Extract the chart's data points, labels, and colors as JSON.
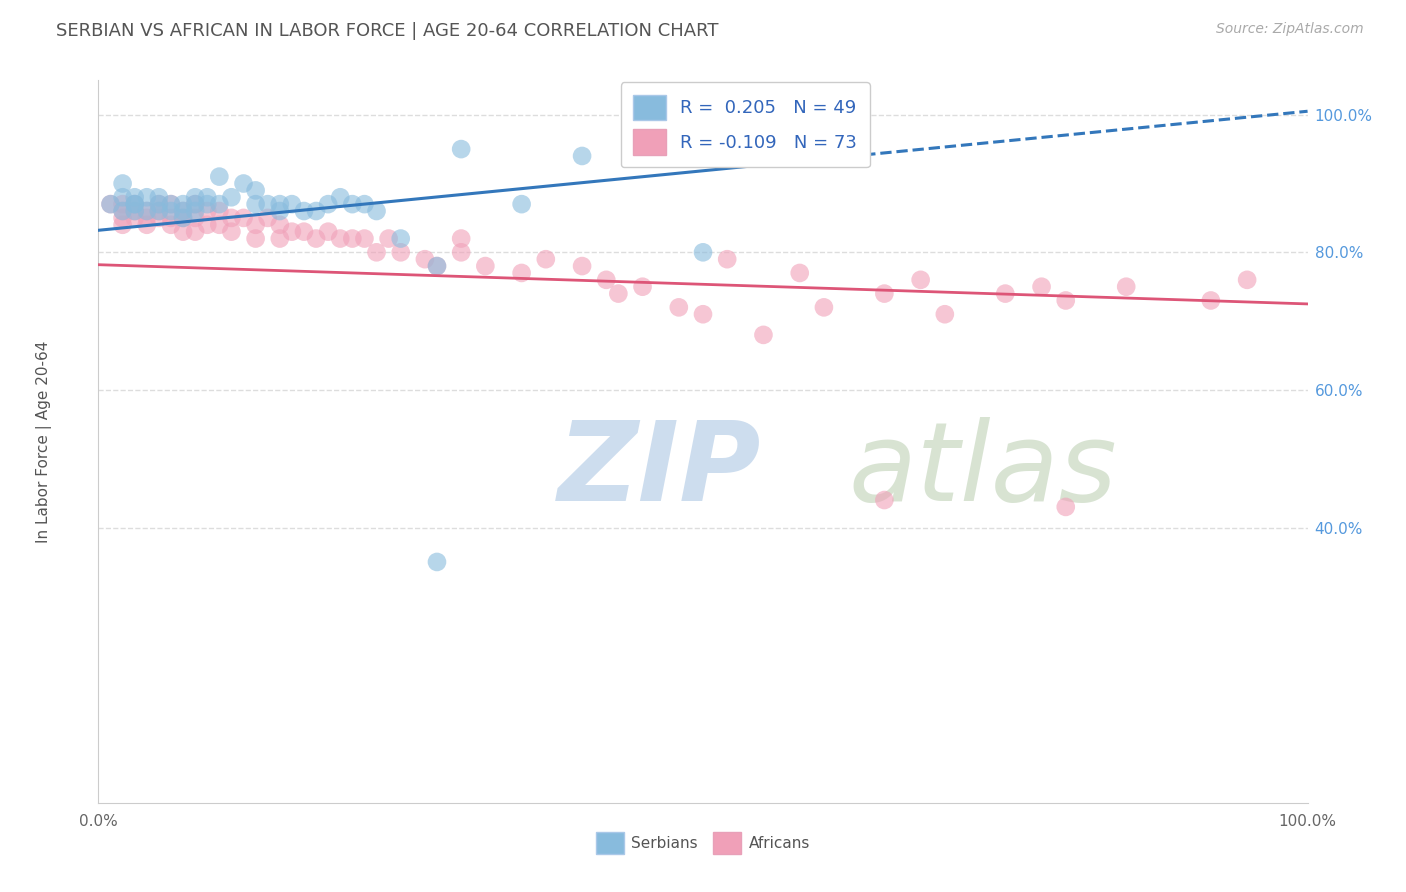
{
  "title": "SERBIAN VS AFRICAN IN LABOR FORCE | AGE 20-64 CORRELATION CHART",
  "source_text": "Source: ZipAtlas.com",
  "ylabel": "In Labor Force | Age 20-64",
  "xlim": [
    0.0,
    1.0
  ],
  "ylim": [
    0.0,
    1.05
  ],
  "x_ticks": [
    0.0,
    0.2,
    0.4,
    0.6,
    0.8,
    1.0
  ],
  "x_tick_labels": [
    "0.0%",
    "",
    "",
    "",
    "",
    "100.0%"
  ],
  "y_tick_vals_right": [
    1.0,
    0.8,
    0.6,
    0.4
  ],
  "y_tick_labels_right": [
    "100.0%",
    "80.0%",
    "60.0%",
    "40.0%"
  ],
  "grid_color": "#dddddd",
  "background_color": "#ffffff",
  "title_color": "#555555",
  "title_fontsize": 13,
  "watermark_zip": "ZIP",
  "watermark_atlas": "atlas",
  "watermark_color_zip": "#b8cfe8",
  "watermark_color_atlas": "#c8d8c0",
  "serbian_color": "#88bbdd",
  "african_color": "#f0a0b8",
  "serbian_R": 0.205,
  "serbian_N": 49,
  "african_R": -0.109,
  "african_N": 73,
  "serbian_line_color": "#3377bb",
  "african_line_color": "#dd5577",
  "legend_labels": [
    "Serbians",
    "Africans"
  ],
  "serbian_trend_x0": 0.0,
  "serbian_trend_x1": 1.0,
  "serbian_trend_y0": 0.832,
  "serbian_trend_y1": 1.005,
  "african_trend_x0": 0.0,
  "african_trend_x1": 1.0,
  "african_trend_y0": 0.782,
  "african_trend_y1": 0.725,
  "serbian_x": [
    0.01,
    0.02,
    0.02,
    0.02,
    0.03,
    0.03,
    0.03,
    0.03,
    0.04,
    0.04,
    0.05,
    0.05,
    0.05,
    0.06,
    0.06,
    0.07,
    0.07,
    0.07,
    0.08,
    0.08,
    0.08,
    0.09,
    0.09,
    0.1,
    0.1,
    0.11,
    0.12,
    0.13,
    0.13,
    0.14,
    0.15,
    0.15,
    0.16,
    0.17,
    0.18,
    0.19,
    0.2,
    0.21,
    0.22,
    0.23,
    0.25,
    0.28,
    0.3,
    0.35,
    0.4,
    0.5,
    0.55,
    0.57,
    0.28
  ],
  "serbian_y": [
    0.87,
    0.9,
    0.86,
    0.88,
    0.87,
    0.87,
    0.86,
    0.88,
    0.88,
    0.86,
    0.86,
    0.87,
    0.88,
    0.87,
    0.86,
    0.87,
    0.86,
    0.85,
    0.88,
    0.87,
    0.86,
    0.88,
    0.87,
    0.87,
    0.91,
    0.88,
    0.9,
    0.87,
    0.89,
    0.87,
    0.87,
    0.86,
    0.87,
    0.86,
    0.86,
    0.87,
    0.88,
    0.87,
    0.87,
    0.86,
    0.82,
    0.78,
    0.95,
    0.87,
    0.94,
    0.8,
    0.94,
    0.99,
    0.35
  ],
  "african_x": [
    0.01,
    0.02,
    0.02,
    0.02,
    0.02,
    0.03,
    0.03,
    0.03,
    0.04,
    0.04,
    0.04,
    0.05,
    0.05,
    0.05,
    0.06,
    0.06,
    0.06,
    0.07,
    0.07,
    0.07,
    0.08,
    0.08,
    0.08,
    0.09,
    0.09,
    0.1,
    0.1,
    0.11,
    0.11,
    0.12,
    0.13,
    0.13,
    0.14,
    0.15,
    0.15,
    0.16,
    0.17,
    0.18,
    0.19,
    0.2,
    0.21,
    0.22,
    0.23,
    0.24,
    0.25,
    0.27,
    0.28,
    0.3,
    0.3,
    0.32,
    0.35,
    0.37,
    0.4,
    0.42,
    0.43,
    0.45,
    0.48,
    0.5,
    0.52,
    0.55,
    0.58,
    0.6,
    0.65,
    0.68,
    0.7,
    0.75,
    0.78,
    0.8,
    0.85,
    0.92,
    0.95,
    0.65,
    0.8
  ],
  "african_y": [
    0.87,
    0.87,
    0.86,
    0.85,
    0.84,
    0.87,
    0.86,
    0.85,
    0.86,
    0.85,
    0.84,
    0.87,
    0.86,
    0.85,
    0.87,
    0.85,
    0.84,
    0.86,
    0.85,
    0.83,
    0.87,
    0.85,
    0.83,
    0.86,
    0.84,
    0.86,
    0.84,
    0.85,
    0.83,
    0.85,
    0.84,
    0.82,
    0.85,
    0.84,
    0.82,
    0.83,
    0.83,
    0.82,
    0.83,
    0.82,
    0.82,
    0.82,
    0.8,
    0.82,
    0.8,
    0.79,
    0.78,
    0.82,
    0.8,
    0.78,
    0.77,
    0.79,
    0.78,
    0.76,
    0.74,
    0.75,
    0.72,
    0.71,
    0.79,
    0.68,
    0.77,
    0.72,
    0.74,
    0.76,
    0.71,
    0.74,
    0.75,
    0.73,
    0.75,
    0.73,
    0.76,
    0.44,
    0.43
  ]
}
